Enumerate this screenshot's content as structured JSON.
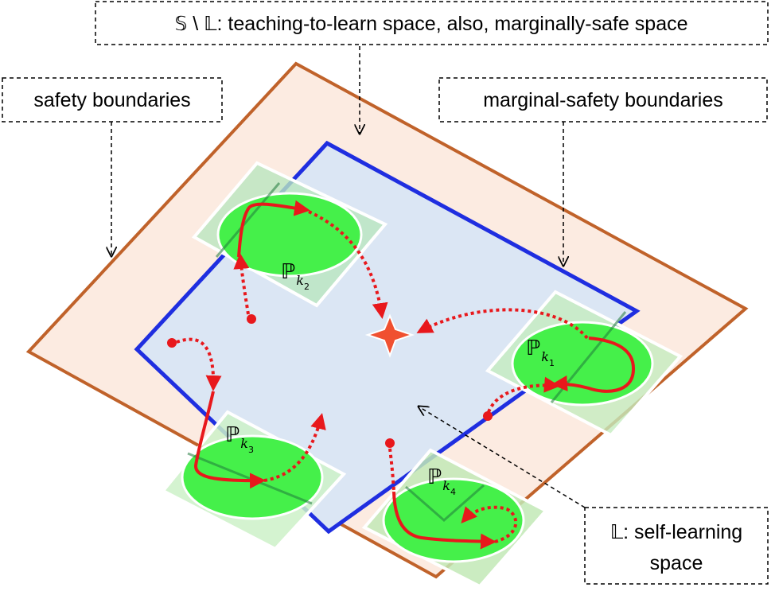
{
  "labels": {
    "top": "𝕊 \\ 𝕃: teaching-to-learn space, also, marginally-safe space",
    "safety": "safety boundaries",
    "marginal": "marginal-safety boundaries",
    "self_line1": "𝕃: self-learning",
    "self_line2": "space"
  },
  "regions": [
    {
      "symbol": "ℙ",
      "sub": "k",
      "subsub": "1"
    },
    {
      "symbol": "ℙ",
      "sub": "k",
      "subsub": "2"
    },
    {
      "symbol": "ℙ",
      "sub": "k",
      "subsub": "3"
    },
    {
      "symbol": "ℙ",
      "sub": "k",
      "subsub": "4"
    }
  ],
  "colors": {
    "safety_boundary": "#c0622a",
    "outer_fill": "#fcebe1",
    "marginal_boundary": "#1f2ee0",
    "inner_fill": "#dbe6f4",
    "patch_fill": "#bfe8b3",
    "ellipse_fill": "#45f04a",
    "trajectory": "#e8181c",
    "target": "#f05030"
  }
}
